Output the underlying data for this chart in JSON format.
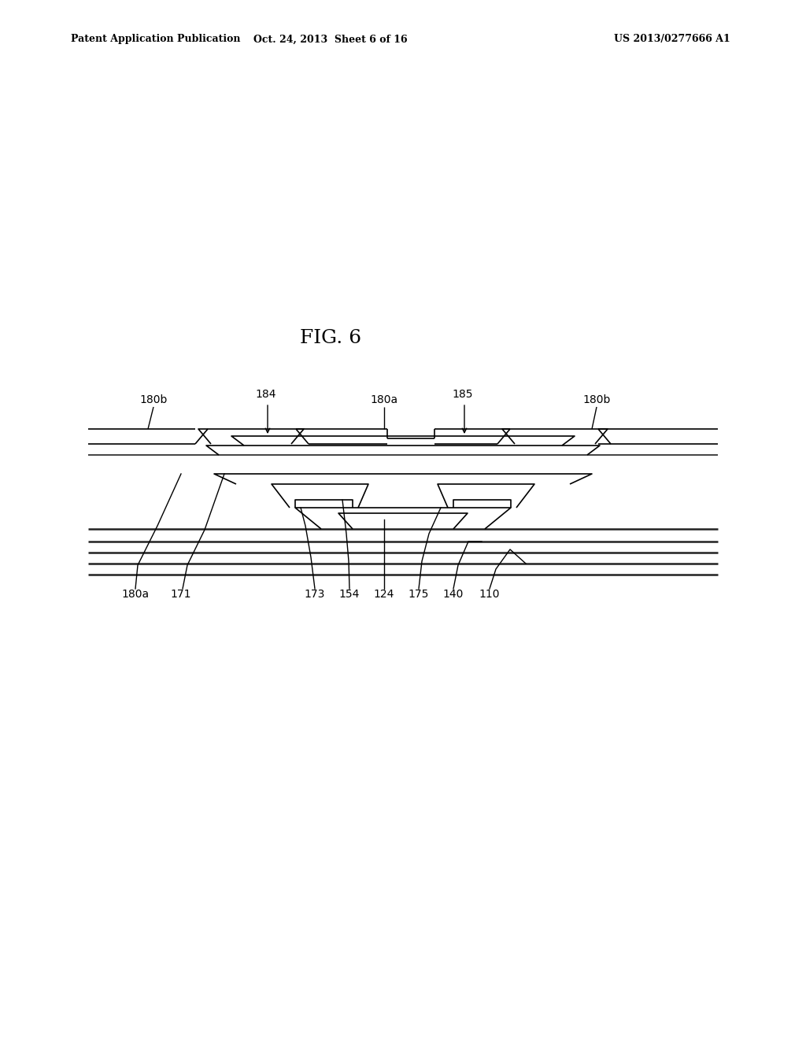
{
  "title": "FIG. 6",
  "header_left": "Patent Application Publication",
  "header_center": "Oct. 24, 2013  Sheet 6 of 16",
  "header_right": "US 2013/0277666 A1",
  "bg_color": "#ffffff",
  "line_color": "#000000",
  "line_width": 1.2,
  "fig_width": 10.24,
  "fig_height": 13.2
}
